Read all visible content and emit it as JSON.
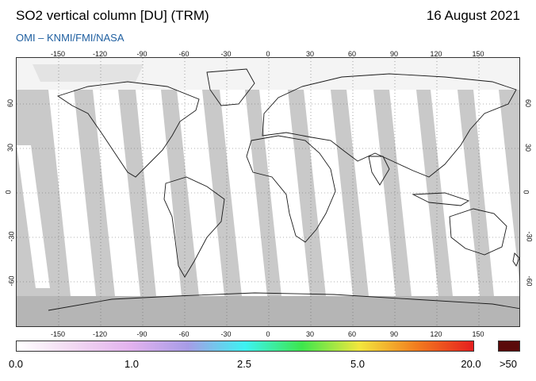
{
  "header": {
    "title": "SO2 vertical column [DU] (TRM)",
    "date": "16 August 2021",
    "credit": "OMI  –  KNMI/FMI/NASA"
  },
  "map": {
    "lon_ticks": [
      "-150",
      "-120",
      "-90",
      "-60",
      "-30",
      "0",
      "30",
      "60",
      "90",
      "120",
      "150"
    ],
    "lat_ticks": [
      "60",
      "30",
      "0",
      "-30",
      "-60"
    ],
    "colors": {
      "no_data": "#c9c9c9",
      "orbit_swath": "#ffffff",
      "land_outline": "#1a1a1a",
      "antarctica": "#b5b5b5",
      "graticule": "#666666"
    }
  },
  "colorbar": {
    "labels": [
      "0.0",
      "1.0",
      "2.5",
      "5.0",
      "20.0",
      ">50"
    ],
    "colors": [
      "#ffffff",
      "#f2d8f2",
      "#e2b2ee",
      "#a79ce6",
      "#3df2f2",
      "#3de64c",
      "#f2e63d",
      "#f27d1f",
      "#e61f1f",
      "#5a0a0a"
    ]
  }
}
